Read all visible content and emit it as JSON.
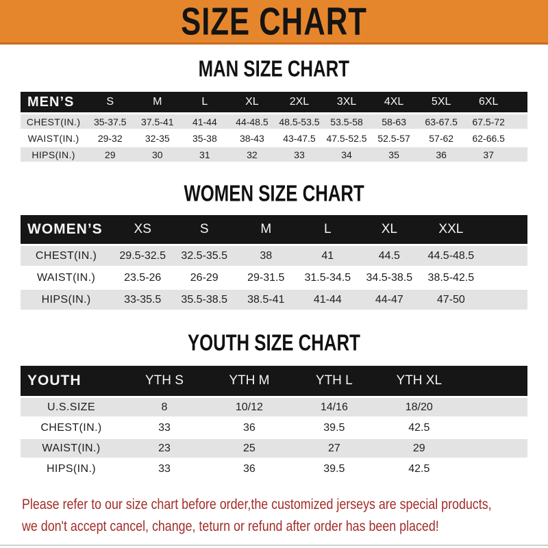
{
  "banner": {
    "title": "SIZE CHART",
    "bg_color": "#E6862C",
    "text_color": "#141414"
  },
  "chart_data": [
    {
      "type": "table",
      "title": "MAN SIZE CHART",
      "header_label": "MEN’S",
      "columns": [
        "S",
        "M",
        "L",
        "XL",
        "2XL",
        "3XL",
        "4XL",
        "5XL",
        "6XL"
      ],
      "rows": [
        {
          "label": "CHEST(IN.)",
          "values": [
            "35-37.5",
            "37.5-41",
            "41-44",
            "44-48.5",
            "48.5-53.5",
            "53.5-58",
            "58-63",
            "63-67.5",
            "67.5-72"
          ]
        },
        {
          "label": "WAIST(IN.)",
          "values": [
            "29-32",
            "32-35",
            "35-38",
            "38-43",
            "43-47.5",
            "47.5-52.5",
            "52.5-57",
            "57-62",
            "62-66.5"
          ]
        },
        {
          "label": "HIPS(IN.)",
          "values": [
            "29",
            "30",
            "31",
            "32",
            "33",
            "34",
            "35",
            "36",
            "37"
          ]
        }
      ]
    },
    {
      "type": "table",
      "title": "WOMEN SIZE CHART",
      "header_label": "WOMEN’S",
      "columns": [
        "XS",
        "S",
        "M",
        "L",
        "XL",
        "XXL"
      ],
      "rows": [
        {
          "label": "CHEST(IN.)",
          "values": [
            "29.5-32.5",
            "32.5-35.5",
            "38",
            "41",
            "44.5",
            "44.5-48.5"
          ]
        },
        {
          "label": "WAIST(IN.)",
          "values": [
            "23.5-26",
            "26-29",
            "29-31.5",
            "31.5-34.5",
            "34.5-38.5",
            "38.5-42.5"
          ]
        },
        {
          "label": "HIPS(IN.)",
          "values": [
            "33-35.5",
            "35.5-38.5",
            "38.5-41",
            "41-44",
            "44-47",
            "47-50"
          ]
        }
      ]
    },
    {
      "type": "table",
      "title": "YOUTH SIZE CHART",
      "header_label": "YOUTH",
      "columns": [
        "YTH S",
        "YTH M",
        "YTH L",
        "YTH XL"
      ],
      "rows": [
        {
          "label": "U.S.SIZE",
          "values": [
            "8",
            "10/12",
            "14/16",
            "18/20"
          ]
        },
        {
          "label": "CHEST(IN.)",
          "values": [
            "33",
            "36",
            "39.5",
            "42.5"
          ]
        },
        {
          "label": "WAIST(IN.)",
          "values": [
            "23",
            "25",
            "27",
            "29"
          ]
        },
        {
          "label": "HIPS(IN.)",
          "values": [
            "33",
            "36",
            "39.5",
            "42.5"
          ]
        }
      ]
    }
  ],
  "footer": {
    "line1": "Please refer to our size chart before order,the customized jerseys are special products,",
    "line2": "we don't accept cancel, change, teturn or refund after order has been placed!",
    "text_color": "#A32C27"
  },
  "colors": {
    "banner_bg": "#E6862C",
    "banner_border": "#C96A1E",
    "table_header_bg": "#161616",
    "row_alt_bg": "#E3E3E3",
    "row_bg": "#FFFFFF",
    "body_text": "#1D1D1D",
    "footer_text": "#A32C27"
  }
}
